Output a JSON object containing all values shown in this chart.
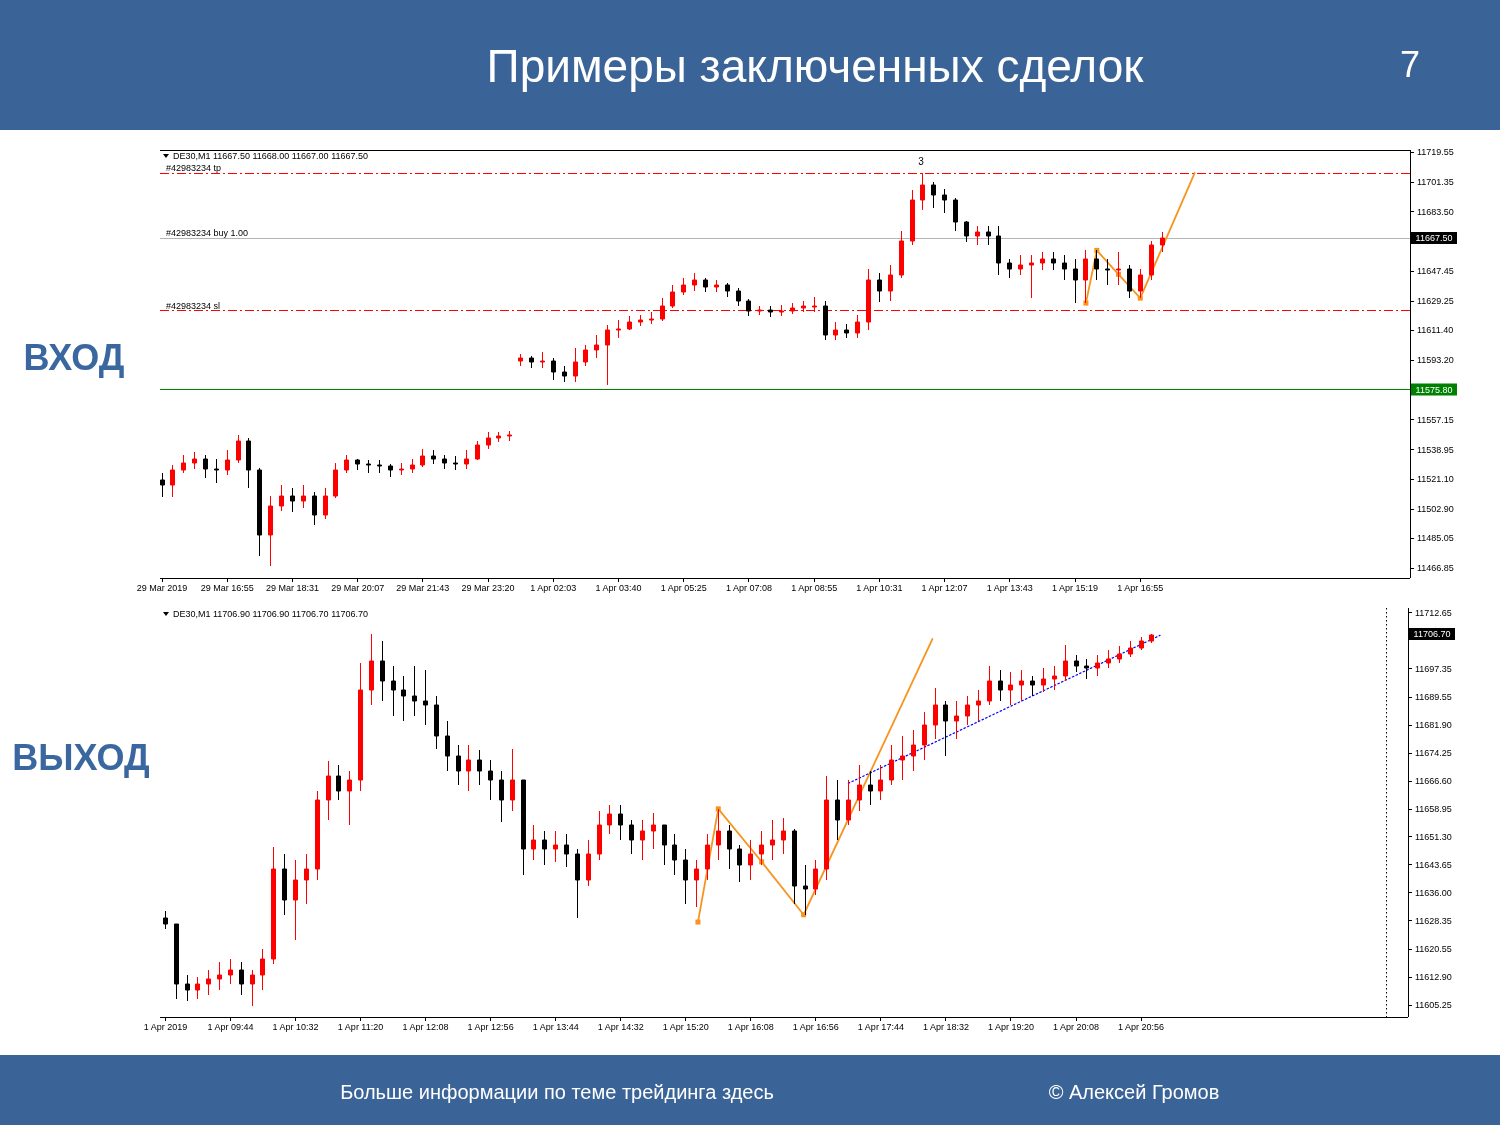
{
  "chart_data": [
    {
      "type": "candlestick",
      "title": "Примеры заключенных сделок",
      "subtitle": "DE30,M1 11667.50 11668.00 11667.00 11667.50",
      "ylabel": "ВХОД",
      "categories": [
        "29 Mar 2019",
        null,
        null,
        null,
        null,
        null,
        "29 Mar 16:55",
        null,
        null,
        null,
        null,
        null,
        "29 Mar 18:31",
        null,
        null,
        null,
        null,
        null,
        "29 Mar 20:07",
        null,
        null,
        null,
        null,
        null,
        "29 Mar 21:43",
        null,
        null,
        null,
        null,
        null,
        "29 Mar 23:20",
        null,
        null,
        null,
        null,
        null,
        "1 Apr 02:03",
        null,
        null,
        null,
        null,
        null,
        "1 Apr 03:40",
        null,
        null,
        null,
        null,
        null,
        "1 Apr 05:25",
        null,
        null,
        null,
        null,
        null,
        "1 Apr 07:08",
        null,
        null,
        null,
        null,
        null,
        "1 Apr 08:55",
        null,
        null,
        null,
        null,
        null,
        "1 Apr 10:31",
        null,
        null,
        null,
        null,
        null,
        "1 Apr 12:07",
        null,
        null,
        null,
        null,
        null,
        "1 Apr 13:43",
        null,
        null,
        null,
        null,
        null,
        "1 Apr 15:19",
        null,
        null,
        null,
        null,
        null,
        "1 Apr 16:55",
        null,
        null,
        null,
        null,
        null,
        null,
        null,
        null,
        null,
        null,
        null,
        null,
        null,
        null,
        null,
        null,
        null,
        null,
        null,
        null,
        null,
        null,
        null,
        null
      ],
      "ohlc": [
        [
          11520.5,
          11525,
          11510,
          11517.5
        ],
        [
          11517.5,
          11529.5,
          11510,
          11526.5
        ],
        [
          11526.5,
          11535.5,
          11525,
          11531
        ],
        [
          11531,
          11537.5,
          11527.5,
          11533.5
        ],
        [
          11533.5,
          11535.5,
          11521.5,
          11527.5
        ],
        [
          11527.5,
          11533.5,
          11519,
          11526.5
        ],
        [
          11526.5,
          11538.5,
          11523.5,
          11532.5
        ],
        [
          11532.5,
          11548,
          11531,
          11544.5
        ],
        [
          11544.5,
          11546,
          11515.5,
          11526.5
        ],
        [
          11526.5,
          11528,
          11474.5,
          11487
        ],
        [
          11487,
          11511,
          11468.5,
          11505
        ],
        [
          11505,
          11517.5,
          11502,
          11511
        ],
        [
          11511,
          11515.5,
          11501,
          11508
        ],
        [
          11508,
          11517.5,
          11503.5,
          11511
        ],
        [
          11511,
          11513,
          11493,
          11499
        ],
        [
          11499,
          11515.5,
          11497,
          11511
        ],
        [
          11511,
          11531,
          11509.5,
          11526.5
        ],
        [
          11526.5,
          11535.5,
          11525,
          11532.5
        ],
        [
          11532.5,
          11533.5,
          11526.5,
          11530
        ],
        [
          11530,
          11532.5,
          11525,
          11529.5
        ],
        [
          11529.5,
          11532.5,
          11525,
          11529
        ],
        [
          11529,
          11530.5,
          11522.5,
          11526.5
        ],
        [
          11526.5,
          11531,
          11523.5,
          11527.5
        ],
        [
          11527.5,
          11533.5,
          11524.5,
          11529.5
        ],
        [
          11529.5,
          11539.5,
          11528.5,
          11535
        ],
        [
          11535,
          11538.5,
          11530,
          11533.5
        ],
        [
          11533.5,
          11535.5,
          11527.5,
          11531
        ],
        [
          11531,
          11535,
          11526.5,
          11530
        ],
        [
          11530,
          11538.5,
          11527.5,
          11533.5
        ],
        [
          11533.5,
          11544.5,
          11532.5,
          11541.5
        ],
        [
          11541.5,
          11549.5,
          11539.5,
          11546
        ],
        [
          11546,
          11549.5,
          11543.5,
          11547
        ],
        [
          11547,
          11550.5,
          11544.5,
          11548
        ],
        [
          11593,
          11597,
          11589.5,
          11594.5
        ],
        [
          11594.5,
          11596,
          11588.5,
          11592
        ],
        [
          11592,
          11598,
          11588.5,
          11593
        ],
        [
          11593,
          11594.5,
          11581,
          11586
        ],
        [
          11586,
          11589.5,
          11580,
          11584
        ],
        [
          11584,
          11600.5,
          11580,
          11592
        ],
        [
          11592,
          11602.5,
          11590,
          11599.5
        ],
        [
          11599.5,
          11608.5,
          11594.5,
          11602.5
        ],
        [
          11602.5,
          11614.5,
          11578,
          11611.5
        ],
        [
          11611.5,
          11617.5,
          11606.5,
          11612.5
        ],
        [
          11612.5,
          11620,
          11611.5,
          11616.5
        ],
        [
          11616.5,
          11621,
          11614,
          11617.5
        ],
        [
          11617.5,
          11622.5,
          11615,
          11618.5
        ],
        [
          11618.5,
          11631,
          11617,
          11626.5
        ],
        [
          11626.5,
          11639,
          11625,
          11634.5
        ],
        [
          11634.5,
          11643,
          11633,
          11639
        ],
        [
          11639,
          11646,
          11635.5,
          11642
        ],
        [
          11642,
          11643,
          11634.5,
          11638
        ],
        [
          11638,
          11642,
          11634.5,
          11639
        ],
        [
          11639,
          11640,
          11632,
          11635.5
        ],
        [
          11635.5,
          11637,
          11626.5,
          11629.5
        ],
        [
          11629.5,
          11630.5,
          11620,
          11623.5
        ],
        [
          11623.5,
          11626.5,
          11620.5,
          11624
        ],
        [
          11624,
          11626,
          11619.5,
          11622.5
        ],
        [
          11622.5,
          11627,
          11620,
          11623.5
        ],
        [
          11623.5,
          11628,
          11621.5,
          11625
        ],
        [
          11625,
          11629,
          11622.5,
          11626
        ],
        [
          11626,
          11632,
          11622.5,
          11626.5
        ],
        [
          11626.5,
          11629.5,
          11605.5,
          11608.5
        ],
        [
          11608.5,
          11616.5,
          11605.5,
          11611.5
        ],
        [
          11611.5,
          11615,
          11606.5,
          11610
        ],
        [
          11610,
          11620.5,
          11606.5,
          11616.5
        ],
        [
          11616.5,
          11649,
          11611.5,
          11642
        ],
        [
          11642,
          11646.5,
          11628.5,
          11635.5
        ],
        [
          11635.5,
          11651,
          11629.5,
          11645
        ],
        [
          11645,
          11672,
          11643,
          11666
        ],
        [
          11666,
          11696.5,
          11663,
          11690.5
        ],
        [
          11690.5,
          11707,
          11684.5,
          11699.5
        ],
        [
          11699.5,
          11701.5,
          11685.5,
          11693.5
        ],
        [
          11693.5,
          11697.5,
          11683,
          11690.5
        ],
        [
          11690.5,
          11692,
          11672,
          11677
        ],
        [
          11677,
          11678,
          11665,
          11669
        ],
        [
          11669,
          11675,
          11663,
          11671
        ],
        [
          11671,
          11675,
          11663,
          11668.5
        ],
        [
          11668.5,
          11675,
          11645,
          11652.5
        ],
        [
          11652.5,
          11655,
          11643,
          11649
        ],
        [
          11649,
          11657,
          11645,
          11651
        ],
        [
          11651,
          11657,
          11631,
          11652.5
        ],
        [
          11652.5,
          11659,
          11648,
          11655
        ],
        [
          11655,
          11659,
          11648,
          11652.5
        ],
        [
          11652.5,
          11657,
          11642,
          11649
        ],
        [
          11649,
          11655,
          11628,
          11642
        ],
        [
          11642,
          11660,
          11628,
          11655
        ],
        [
          11655,
          11660,
          11642,
          11649
        ],
        [
          11649,
          11655,
          11639,
          11648
        ],
        [
          11648,
          11659,
          11639,
          11649
        ],
        [
          11649,
          11651,
          11631,
          11635.5
        ],
        [
          11635.5,
          11649,
          11631,
          11645
        ],
        [
          11645,
          11666,
          11642,
          11663
        ],
        [
          11663,
          11671,
          11659,
          11667.5
        ],
        null,
        null,
        null,
        null,
        null,
        null,
        null,
        null,
        null,
        null,
        null,
        null,
        null,
        null,
        null,
        null,
        null,
        null,
        null,
        null,
        null,
        null
      ],
      "colors": [
        "#000000",
        "#ff0000",
        "#ff0000",
        "#ff0000",
        "#000000",
        "#000000",
        "#ff0000",
        "#ff0000",
        "#000000",
        "#000000",
        "#ff0000",
        "#ff0000",
        "#000000",
        "#ff0000",
        "#000000",
        "#ff0000",
        "#ff0000",
        "#ff0000",
        "#000000",
        "#000000",
        "#000000",
        "#000000",
        "#ff0000",
        "#ff0000",
        "#ff0000",
        "#000000",
        "#000000",
        "#000000",
        "#ff0000",
        "#ff0000",
        "#ff0000",
        "#ff0000",
        "#ff0000",
        "#ff0000",
        "#000000",
        "#ff0000",
        "#000000",
        "#000000",
        "#ff0000",
        "#ff0000",
        "#ff0000",
        "#ff0000",
        "#ff0000",
        "#ff0000",
        "#ff0000",
        "#ff0000",
        "#ff0000",
        "#ff0000",
        "#ff0000",
        "#ff0000",
        "#000000",
        "#ff0000",
        "#000000",
        "#000000",
        "#000000",
        "#ff0000",
        "#000000",
        "#ff0000",
        "#ff0000",
        "#ff0000",
        "#ff0000",
        "#000000",
        "#ff0000",
        "#000000",
        "#ff0000",
        "#ff0000",
        "#000000",
        "#ff0000",
        "#ff0000",
        "#ff0000",
        "#ff0000",
        "#000000",
        "#000000",
        "#000000",
        "#000000",
        "#ff0000",
        "#000000",
        "#000000",
        "#000000",
        "#ff0000",
        "#ff0000",
        "#ff0000",
        "#000000",
        "#000000",
        "#000000",
        "#ff0000",
        "#000000",
        "#000000",
        "#ff0000",
        "#000000",
        "#ff0000",
        "#ff0000",
        "#ff0000",
        null,
        null,
        null,
        null,
        null,
        null,
        null,
        null,
        null,
        null,
        null,
        null,
        null,
        null,
        null,
        null,
        null,
        null,
        null,
        null,
        null,
        null
      ],
      "series": [
        {
          "type": "line",
          "color": "#f7941d",
          "marker": "square",
          "values": [
            null,
            null,
            null,
            null,
            null,
            null,
            null,
            null,
            null,
            null,
            null,
            null,
            null,
            null,
            null,
            null,
            null,
            null,
            null,
            null,
            null,
            null,
            null,
            null,
            null,
            null,
            null,
            null,
            null,
            null,
            null,
            null,
            null,
            null,
            null,
            null,
            null,
            null,
            null,
            null,
            null,
            null,
            null,
            null,
            null,
            null,
            null,
            null,
            null,
            null,
            null,
            null,
            null,
            null,
            null,
            null,
            null,
            null,
            null,
            null,
            null,
            null,
            null,
            null,
            null,
            null,
            null,
            null,
            null,
            null,
            null,
            null,
            null,
            null,
            null,
            null,
            null,
            null,
            null,
            null,
            null,
            null,
            null,
            null,
            null,
            11628,
            11660,
            null,
            11645.5,
            null,
            11631,
            null,
            null,
            null,
            null,
            null,
            null,
            null,
            null,
            null,
            null,
            null,
            null,
            null,
            null,
            null,
            null,
            null,
            null,
            null,
            null,
            null,
            null,
            null,
            null
          ]
        },
        {
          "type": "line",
          "color": "#f7941d",
          "values": [
            null,
            null,
            null,
            null,
            null,
            null,
            null,
            null,
            null,
            null,
            null,
            null,
            null,
            null,
            null,
            null,
            null,
            null,
            null,
            null,
            null,
            null,
            null,
            null,
            null,
            null,
            null,
            null,
            null,
            null,
            null,
            null,
            null,
            null,
            null,
            null,
            null,
            null,
            null,
            null,
            null,
            null,
            null,
            null,
            null,
            null,
            null,
            null,
            null,
            null,
            null,
            null,
            null,
            null,
            null,
            null,
            null,
            null,
            null,
            null,
            null,
            null,
            null,
            null,
            null,
            null,
            null,
            null,
            null,
            null,
            null,
            null,
            null,
            null,
            null,
            null,
            null,
            null,
            null,
            null,
            null,
            null,
            null,
            null,
            null,
            null,
            null,
            null,
            null,
            null,
            11631,
            null,
            null,
            null,
            null,
            11707,
            null,
            null,
            null,
            null,
            null,
            null,
            null,
            null,
            null,
            null,
            null,
            null,
            null,
            null,
            null,
            null,
            null,
            null,
            null
          ]
        }
      ],
      "ylim": [
        11461,
        11721
      ],
      "yticks": [
        11719.55,
        11701.35,
        {
          "value": 11683.5,
          "label": "11683.50"
        },
        11647.45,
        11629.25,
        {
          "value": 11611.4,
          "label": "11611.40"
        },
        {
          "value": 11593.2,
          "label": "11593.20"
        },
        11557.15,
        11538.95,
        {
          "value": 11521.1,
          "label": "11521.10"
        },
        {
          "value": 11502.9,
          "label": "11502.90"
        },
        11485.05,
        11466.85
      ],
      "ref_lines": [
        {
          "axis": "y",
          "value": 11707,
          "color": "#ff0000",
          "line_style": "dashed"
        },
        {
          "axis": "y",
          "value": 11667.5,
          "color": "#b4b4b4"
        },
        {
          "axis": "y",
          "value": 11623.5,
          "color": "#ff0000",
          "line_style": "dashed"
        },
        {
          "axis": "y",
          "value": 11575.8,
          "label": "11575.80",
          "color": "#008000"
        }
      ],
      "annotations": [
        "7",
        {
          "text": "#42983234 tp",
          "y": 11707
        },
        {
          "text": "#42983234 buy 1.00",
          "y": 11667.5
        },
        {
          "text": "#42983234 sl",
          "y": 11623.5
        },
        "3",
        "11667.50"
      ]
    },
    {
      "type": "candlestick",
      "subtitle": "DE30,M1 11706.90 11706.90 11706.70 11706.70",
      "ylabel": "ВЫХОД",
      "x": [
        "2019-04-01T08:56",
        "2019-04-01T09:04",
        "2019-04-01T09:12",
        "2019-04-01T09:20",
        "2019-04-01T09:28",
        "2019-04-01T09:36",
        "2019-04-01T09:44",
        "2019-04-01T09:52",
        "2019-04-01T10:00",
        "2019-04-01T10:08",
        "2019-04-01T10:16",
        "2019-04-01T10:24",
        "2019-04-01T10:32",
        "2019-04-01T10:40",
        "2019-04-01T10:48",
        "2019-04-01T10:56",
        "2019-04-01T11:04",
        "2019-04-01T11:12",
        "2019-04-01T11:20",
        "2019-04-01T11:28",
        "2019-04-01T11:36",
        "2019-04-01T11:44",
        "2019-04-01T11:52",
        "2019-04-01T12:00",
        "2019-04-01T12:08",
        "2019-04-01T12:16",
        "2019-04-01T12:24",
        "2019-04-01T12:32",
        "2019-04-01T12:40",
        "2019-04-01T12:48",
        "2019-04-01T12:56",
        "2019-04-01T13:04",
        "2019-04-01T13:12",
        "2019-04-01T13:20",
        "2019-04-01T13:28",
        "2019-04-01T13:36",
        "2019-04-01T13:44",
        "2019-04-01T13:52",
        "2019-04-01T14:00",
        "2019-04-01T14:08",
        "2019-04-01T14:16",
        "2019-04-01T14:24",
        "2019-04-01T14:32",
        "2019-04-01T14:40",
        "2019-04-01T14:48",
        "2019-04-01T14:56",
        "2019-04-01T15:04",
        "2019-04-01T15:12",
        "2019-04-01T15:20",
        "2019-04-01T15:28",
        "2019-04-01T15:36",
        "2019-04-01T15:44",
        "2019-04-01T15:52",
        "2019-04-01T16:00",
        "2019-04-01T16:08",
        "2019-04-01T16:16",
        "2019-04-01T16:24",
        "2019-04-01T16:32",
        "2019-04-01T16:40",
        "2019-04-01T16:48",
        "2019-04-01T16:56",
        "2019-04-01T17:04",
        "2019-04-01T17:12",
        "2019-04-01T17:20",
        "2019-04-01T17:28",
        "2019-04-01T17:36",
        "2019-04-01T17:44",
        "2019-04-01T17:52",
        "2019-04-01T18:00",
        "2019-04-01T18:08",
        "2019-04-01T18:16",
        "2019-04-01T18:24",
        "2019-04-01T18:32",
        "2019-04-01T18:40",
        "2019-04-01T18:48",
        "2019-04-01T18:56",
        "2019-04-01T19:04",
        "2019-04-01T19:12",
        "2019-04-01T19:20",
        "2019-04-01T19:28",
        "2019-04-01T19:36",
        "2019-04-01T19:44",
        "2019-04-01T19:52",
        "2019-04-01T20:00",
        "2019-04-01T20:08",
        "2019-04-01T20:16",
        "2019-04-01T20:24",
        "2019-04-01T20:32",
        "2019-04-01T20:40",
        "2019-04-01T20:48",
        "2019-04-01T20:56",
        "2019-04-01T21:04"
      ],
      "ohlc": [
        [
          11629,
          11631,
          11626,
          11627.5
        ],
        [
          11627.5,
          11627.5,
          11607,
          11611
        ],
        [
          11611,
          11613.5,
          11606.5,
          11609.5
        ],
        [
          11609.5,
          11613,
          11607,
          11611
        ],
        [
          11611,
          11615,
          11608,
          11612.5
        ],
        [
          11612.5,
          11617,
          11609.5,
          11613.5
        ],
        [
          11613.5,
          11618,
          11611,
          11615
        ],
        [
          11615,
          11617,
          11608,
          11611
        ],
        [
          11611,
          11615,
          11605,
          11613.5
        ],
        [
          11613.5,
          11620.5,
          11609.5,
          11618
        ],
        [
          11618,
          11648.5,
          11616.5,
          11642.5
        ],
        [
          11642.5,
          11646.5,
          11630,
          11634
        ],
        [
          11634,
          11645,
          11623,
          11639.5
        ],
        [
          11639.5,
          11646.5,
          11633,
          11642.5
        ],
        [
          11642.5,
          11664,
          11639.5,
          11661.5
        ],
        [
          11661.5,
          11672,
          11656,
          11668
        ],
        [
          11668,
          11671,
          11661.5,
          11664
        ],
        [
          11664,
          11669.5,
          11654.5,
          11667
        ],
        [
          11667,
          11699,
          11664,
          11691.5
        ],
        [
          11691.5,
          11707,
          11687.5,
          11699.5
        ],
        [
          11699.5,
          11705,
          11688.5,
          11694
        ],
        [
          11694,
          11698,
          11684.5,
          11691.5
        ],
        [
          11691.5,
          11695.5,
          11683,
          11690
        ],
        [
          11690,
          11698,
          11684.5,
          11688.5
        ],
        [
          11688.5,
          11697,
          11682,
          11687.5
        ],
        [
          11687.5,
          11690,
          11675.5,
          11679
        ],
        [
          11679,
          11683,
          11669.5,
          11673.5
        ],
        [
          11673.5,
          11676.5,
          11665.5,
          11669.5
        ],
        [
          11669.5,
          11676.5,
          11664,
          11672.5
        ],
        [
          11672.5,
          11675,
          11665.5,
          11669.5
        ],
        [
          11669.5,
          11672.5,
          11661.5,
          11667
        ],
        [
          11667,
          11669.5,
          11655.5,
          11661.5
        ],
        [
          11661.5,
          11675.5,
          11658.5,
          11667
        ],
        [
          11667,
          11667,
          11641,
          11648
        ],
        [
          11648,
          11654.5,
          11645,
          11650.5
        ],
        [
          11650.5,
          11653,
          11643.5,
          11648
        ],
        [
          11648,
          11653,
          11644.5,
          11649
        ],
        [
          11649,
          11652,
          11643,
          11646.5
        ],
        [
          11646.5,
          11648,
          11629,
          11639.5
        ],
        [
          11639.5,
          11650.5,
          11638,
          11646.5
        ],
        [
          11646.5,
          11658.5,
          11645,
          11654.5
        ],
        [
          11654.5,
          11660,
          11652,
          11657.5
        ],
        [
          11657.5,
          11660,
          11650.5,
          11654.5
        ],
        [
          11654.5,
          11656,
          11646.5,
          11650.5
        ],
        [
          11650.5,
          11656,
          11645,
          11653
        ],
        [
          11653,
          11658,
          11648,
          11654.5
        ],
        [
          11654.5,
          11654.5,
          11643.5,
          11649
        ],
        [
          11649,
          11652,
          11641,
          11645
        ],
        [
          11645,
          11648,
          11633,
          11639.5
        ],
        [
          11639.5,
          11645,
          11632,
          11642.5
        ],
        [
          11642.5,
          11652,
          11639.5,
          11649
        ],
        [
          11649,
          11659,
          11645,
          11653
        ],
        [
          11653,
          11654.5,
          11642.5,
          11648
        ],
        [
          11648,
          11649,
          11639,
          11643.5
        ],
        [
          11643.5,
          11650.5,
          11639.5,
          11646.5
        ],
        [
          11646.5,
          11653,
          11643.5,
          11649
        ],
        [
          11649,
          11656,
          11645,
          11650.5
        ],
        [
          11650.5,
          11656.5,
          11646.5,
          11653
        ],
        [
          11653,
          11653.5,
          11633,
          11638
        ],
        [
          11638,
          11643.5,
          11630,
          11637
        ],
        [
          11637,
          11645,
          11635.5,
          11642.5
        ],
        [
          11642.5,
          11668,
          11639.5,
          11661.5
        ],
        [
          11661.5,
          11667,
          11650.5,
          11656
        ],
        [
          11656,
          11667,
          11654.5,
          11661.5
        ],
        [
          11661.5,
          11671,
          11658.5,
          11665.5
        ],
        [
          11665.5,
          11669.5,
          11660,
          11664
        ],
        [
          11664,
          11671,
          11661.5,
          11667
        ],
        [
          11667,
          11676.5,
          11665.5,
          11672.5
        ],
        [
          11672.5,
          11679,
          11667,
          11673.5
        ],
        [
          11673.5,
          11680.5,
          11669.5,
          11676.5
        ],
        [
          11676.5,
          11685.5,
          11672.5,
          11682
        ],
        [
          11682,
          11692,
          11678,
          11687.5
        ],
        [
          11687.5,
          11688.5,
          11673.5,
          11683
        ],
        [
          11683,
          11688.5,
          11678,
          11684.5
        ],
        [
          11684.5,
          11690,
          11682,
          11687.5
        ],
        [
          11687.5,
          11691.5,
          11683,
          11688.5
        ],
        [
          11688.5,
          11698,
          11687.5,
          11694
        ],
        [
          11694,
          11697,
          11688.5,
          11691.5
        ],
        [
          11691.5,
          11696.5,
          11687.5,
          11693
        ],
        [
          11693,
          11697,
          11688.5,
          11694
        ],
        [
          11694,
          11695.5,
          11690,
          11693
        ],
        [
          11693,
          11697.5,
          11691,
          11694.5
        ],
        [
          11694.5,
          11698,
          11691.5,
          11695.5
        ],
        [
          11695.5,
          11704,
          11694,
          11699.5
        ],
        [
          11699.5,
          11701,
          11696.5,
          11698
        ],
        [
          11698,
          11700,
          11694.5,
          11697.5
        ],
        [
          11697.5,
          11701,
          11695.5,
          11699
        ],
        [
          11699,
          11702.5,
          11697.5,
          11700
        ],
        [
          11700,
          11703.5,
          11699,
          11701.5
        ],
        [
          11701.5,
          11705,
          11700.5,
          11703
        ],
        [
          11703,
          11706,
          11702.5,
          11705
        ],
        [
          11705,
          11707,
          11704.5,
          11706.7
        ]
      ],
      "colors": [
        "#000000",
        "#000000",
        "#000000",
        "#ff0000",
        "#ff0000",
        "#ff0000",
        "#ff0000",
        "#000000",
        "#ff0000",
        "#ff0000",
        "#ff0000",
        "#000000",
        "#ff0000",
        "#ff0000",
        "#ff0000",
        "#ff0000",
        "#000000",
        "#ff0000",
        "#ff0000",
        "#ff0000",
        "#000000",
        "#000000",
        "#000000",
        "#000000",
        "#000000",
        "#000000",
        "#000000",
        "#000000",
        "#ff0000",
        "#000000",
        "#000000",
        "#000000",
        "#ff0000",
        "#000000",
        "#ff0000",
        "#000000",
        "#ff0000",
        "#000000",
        "#000000",
        "#ff0000",
        "#ff0000",
        "#ff0000",
        "#000000",
        "#000000",
        "#ff0000",
        "#ff0000",
        "#000000",
        "#000000",
        "#000000",
        "#ff0000",
        "#ff0000",
        "#ff0000",
        "#000000",
        "#000000",
        "#ff0000",
        "#ff0000",
        "#ff0000",
        "#ff0000",
        "#000000",
        "#000000",
        "#ff0000",
        "#ff0000",
        "#000000",
        "#ff0000",
        "#ff0000",
        "#000000",
        "#ff0000",
        "#ff0000",
        "#ff0000",
        "#ff0000",
        "#ff0000",
        "#ff0000",
        "#000000",
        "#ff0000",
        "#ff0000",
        "#ff0000",
        "#ff0000",
        "#000000",
        "#ff0000",
        "#ff0000",
        "#000000",
        "#ff0000",
        "#ff0000",
        "#ff0000",
        "#000000",
        "#000000",
        "#ff0000",
        "#ff0000",
        "#ff0000",
        "#ff0000",
        "#ff0000",
        "#ff0000"
      ],
      "series": [
        {
          "type": "line",
          "color": "#f7941d",
          "marker": "square",
          "x": [
            "2019-04-01T15:29",
            "2019-04-01T15:44",
            "2019-04-01T16:16",
            "2019-04-01T16:47"
          ],
          "values": [
            11628,
            11659,
            11644.5,
            11630
          ]
        },
        {
          "type": "line",
          "color": "#f7941d",
          "x": [
            "2019-04-01T16:47",
            "2019-04-01T18:22"
          ],
          "values": [
            11630,
            11705.5
          ]
        },
        {
          "type": "line",
          "color": "#0000ff",
          "line_style": "dotted",
          "x": [
            "2019-04-01T17:20",
            "2019-04-01T21:10"
          ],
          "values": [
            11666,
            11706.5
          ]
        }
      ],
      "xlim": [
        "2019-04-01T08:52",
        "2019-04-02T00:13"
      ],
      "ylim": [
        11602,
        11714
      ],
      "xticks": [
        {
          "value": "2019-04-01T08:56",
          "label": "1 Apr 2019"
        },
        {
          "value": "2019-04-01T09:44",
          "label": "1 Apr 09:44"
        },
        {
          "value": "2019-04-01T10:32",
          "label": "1 Apr 10:32"
        },
        {
          "value": "2019-04-01T11:20",
          "label": "1 Apr 11:20"
        },
        {
          "value": "2019-04-01T12:08",
          "label": "1 Apr 12:08"
        },
        {
          "value": "2019-04-01T12:56",
          "label": "1 Apr 12:56"
        },
        {
          "value": "2019-04-01T13:44",
          "label": "1 Apr 13:44"
        },
        {
          "value": "2019-04-01T14:32",
          "label": "1 Apr 14:32"
        },
        {
          "value": "2019-04-01T15:20",
          "label": "1 Apr 15:20"
        },
        {
          "value": "2019-04-01T16:08",
          "label": "1 Apr 16:08"
        },
        {
          "value": "2019-04-01T16:56",
          "label": "1 Apr 16:56"
        },
        {
          "value": "2019-04-01T17:44",
          "label": "1 Apr 17:44"
        },
        {
          "value": "2019-04-01T18:32",
          "label": "1 Apr 18:32"
        },
        {
          "value": "2019-04-01T19:20",
          "label": "1 Apr 19:20"
        },
        {
          "value": "2019-04-01T20:08",
          "label": "1 Apr 20:08"
        },
        {
          "value": "2019-04-01T20:56",
          "label": "1 Apr 20:56"
        }
      ],
      "yticks": [
        11712.65,
        11697.35,
        11689.55,
        {
          "value": 11681.9,
          "label": "11681.90"
        },
        11674.25,
        {
          "value": 11666.6,
          "label": "11666.60"
        },
        11658.95,
        {
          "value": 11651.3,
          "label": "11651.30"
        },
        11643.65,
        {
          "value": 11636,
          "label": "11636.00"
        },
        11628.35,
        11620.55,
        {
          "value": 11612.9,
          "label": "11612.90"
        },
        11605.25
      ],
      "ref_lines": [
        {
          "axis": "x",
          "value": "2019-04-01T23:57",
          "color": "#000000",
          "line_style": "dotted"
        }
      ],
      "annotations": [
        "Больше информации по теме трейдинга здесь",
        "© Алексей Громов",
        "11706.70"
      ]
    }
  ]
}
